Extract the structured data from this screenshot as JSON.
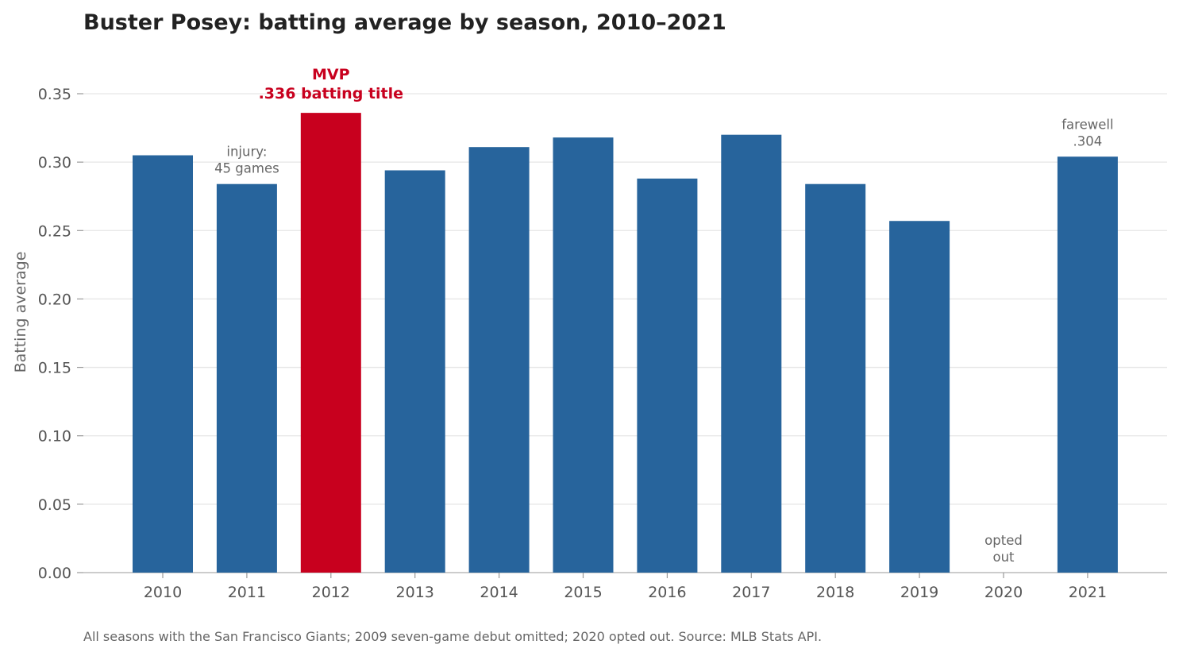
{
  "chart_data": {
    "type": "bar",
    "title": "Buster Posey: batting average by season, 2010–2021",
    "ylabel": "Batting average",
    "xlabel": "",
    "categories": [
      "2010",
      "2011",
      "2012",
      "2013",
      "2014",
      "2015",
      "2016",
      "2017",
      "2018",
      "2019",
      "2020",
      "2021"
    ],
    "values": [
      0.305,
      0.284,
      0.336,
      0.294,
      0.311,
      0.318,
      0.288,
      0.32,
      0.284,
      0.257,
      null,
      0.304
    ],
    "highlight_index": 2,
    "ylim": [
      0,
      0.35
    ],
    "yticks": [
      "0.00",
      "0.05",
      "0.10",
      "0.15",
      "0.20",
      "0.25",
      "0.30",
      "0.35"
    ],
    "grid": "horizontal",
    "colors": {
      "bar": "#27649c",
      "highlight": "#c8001e",
      "grid": "#e6e6e6",
      "axis": "#bbbbbb"
    },
    "annotations": [
      {
        "category": "2011",
        "lines": [
          "injury:",
          "45 games"
        ],
        "style": "normal"
      },
      {
        "category": "2012",
        "lines": [
          "MVP",
          ".336 batting title"
        ],
        "style": "highlight"
      },
      {
        "category": "2020",
        "lines": [
          "opted",
          "out"
        ],
        "style": "normal"
      },
      {
        "category": "2021",
        "lines": [
          "farewell",
          ".304"
        ],
        "style": "normal"
      }
    ],
    "footnote": "All seasons with the San Francisco Giants; 2009 seven-game debut omitted; 2020 opted out. Source: MLB Stats API."
  }
}
